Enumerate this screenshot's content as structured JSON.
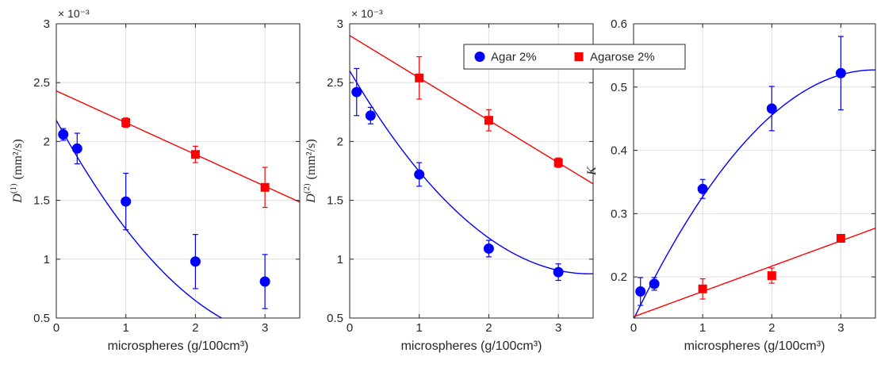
{
  "colors": {
    "agar": "#0000ff",
    "agarose": "#ff0000",
    "axes": "#262626",
    "grid": "#dfdfdf"
  },
  "legend": {
    "placement": "top-center",
    "entries": [
      {
        "label": "Agar 2%",
        "marker": "circle",
        "color": "#0000ff"
      },
      {
        "label": "Agarose 2%",
        "marker": "square",
        "color": "#ff0000"
      }
    ]
  },
  "chart_data": [
    {
      "type": "scatter",
      "xlabel": "microspheres (g/100cm³)",
      "ylabel_var": "D",
      "ylabel_sup": "(1)",
      "ylabel_units": "(mm²/s)",
      "exponent_label": "× 10⁻³",
      "xlim": [
        0,
        3.5
      ],
      "ylim": [
        0.5,
        3
      ],
      "xticks": [
        0,
        1,
        2,
        3
      ],
      "yticks": [
        0.5,
        1,
        1.5,
        2,
        2.5,
        3
      ],
      "xtick_labels": [
        "0",
        "1",
        "2",
        "3"
      ],
      "ytick_labels": [
        "0.5",
        "1",
        "1.5",
        "2",
        "2.5",
        "3"
      ],
      "grid": true,
      "series": [
        {
          "key": "agar",
          "marker": "circle",
          "x": [
            0.1,
            0.3,
            1,
            2,
            3
          ],
          "y": [
            2.06,
            1.94,
            1.49,
            0.98,
            0.81
          ],
          "err": [
            0.05,
            0.13,
            0.24,
            0.23,
            0.23
          ],
          "fit": {
            "kind": "quadratic",
            "coef": [
              2.18,
              -1.08,
              0.157
            ]
          }
        },
        {
          "key": "agarose",
          "marker": "square",
          "x": [
            1,
            2,
            3
          ],
          "y": [
            2.16,
            1.89,
            1.61
          ],
          "err": [
            0.04,
            0.07,
            0.17
          ],
          "fit": {
            "kind": "linear",
            "coef": [
              2.43,
              -0.27
            ]
          }
        }
      ]
    },
    {
      "type": "scatter",
      "xlabel": "microspheres (g/100cm³)",
      "ylabel_var": "D",
      "ylabel_sup": "(2)",
      "ylabel_units": "(mm²/s)",
      "exponent_label": "× 10⁻³",
      "xlim": [
        0,
        3.5
      ],
      "ylim": [
        0.5,
        3
      ],
      "xticks": [
        0,
        1,
        2,
        3
      ],
      "yticks": [
        0.5,
        1,
        1.5,
        2,
        2.5,
        3
      ],
      "xtick_labels": [
        "0",
        "1",
        "2",
        "3"
      ],
      "ytick_labels": [
        "0.5",
        "1",
        "1.5",
        "2",
        "2.5",
        "3"
      ],
      "grid": true,
      "series": [
        {
          "key": "agar",
          "marker": "circle",
          "x": [
            0.1,
            0.3,
            1,
            2,
            3
          ],
          "y": [
            2.42,
            2.22,
            1.72,
            1.09,
            0.89
          ],
          "err": [
            0.2,
            0.07,
            0.1,
            0.07,
            0.07
          ],
          "fit": {
            "kind": "quadratic",
            "coef": [
              2.6,
              -1.0,
              0.145
            ]
          }
        },
        {
          "key": "agarose",
          "marker": "square",
          "x": [
            1,
            2,
            3
          ],
          "y": [
            2.54,
            2.18,
            1.82
          ],
          "err": [
            0.18,
            0.09,
            0.04
          ],
          "fit": {
            "kind": "linear",
            "coef": [
              2.9,
              -0.36
            ]
          }
        }
      ]
    },
    {
      "type": "scatter",
      "xlabel": "microspheres (g/100cm³)",
      "ylabel_var": "K",
      "ylabel_sup": "",
      "ylabel_units": "",
      "exponent_label": "",
      "xlim": [
        0,
        3.5
      ],
      "ylim": [
        0.135,
        0.6
      ],
      "xticks": [
        0,
        1,
        2,
        3
      ],
      "yticks": [
        0.2,
        0.3,
        0.4,
        0.5,
        0.6
      ],
      "xtick_labels": [
        "0",
        "1",
        "2",
        "3"
      ],
      "ytick_labels": [
        "0.2",
        "0.3",
        "0.4",
        "0.5",
        "0.6"
      ],
      "grid": true,
      "series": [
        {
          "key": "agar",
          "marker": "circle",
          "x": [
            0.1,
            0.3,
            1,
            2,
            3
          ],
          "y": [
            0.177,
            0.189,
            0.339,
            0.466,
            0.522
          ],
          "err": [
            0.022,
            0.01,
            0.015,
            0.035,
            0.058
          ],
          "fit": {
            "kind": "quadratic",
            "coef": [
              0.133,
              0.226,
              -0.0324
            ]
          }
        },
        {
          "key": "agarose",
          "marker": "square",
          "x": [
            1,
            2,
            3
          ],
          "y": [
            0.181,
            0.202,
            0.261
          ],
          "err": [
            0.016,
            0.012,
            0.006
          ],
          "fit": {
            "kind": "linear",
            "coef": [
              0.137,
              0.04
            ]
          }
        }
      ]
    }
  ]
}
